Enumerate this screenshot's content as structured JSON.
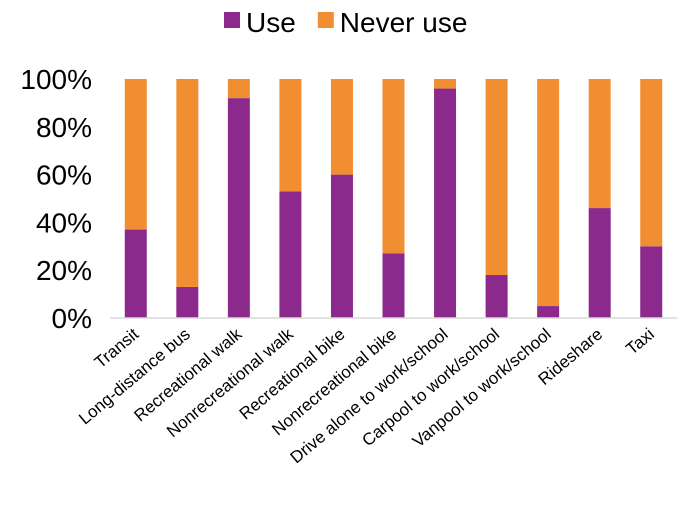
{
  "chart_data": {
    "type": "bar",
    "stacked": true,
    "normalized": true,
    "categories": [
      "Transit",
      "Long-distance bus",
      "Recreational walk",
      "Nonrecreational walk",
      "Recreational bike",
      "Nonrecreational bike",
      "Drive alone to work/school",
      "Carpool to work/school",
      "Vanpool to work/school",
      "Rideshare",
      "Taxi"
    ],
    "series": [
      {
        "name": "Use",
        "color": "#8b2a8c",
        "values": [
          37,
          13,
          92,
          53,
          60,
          27,
          96,
          18,
          5,
          46,
          30
        ]
      },
      {
        "name": "Never use",
        "color": "#f28e32",
        "values": [
          63,
          87,
          8,
          47,
          40,
          73,
          4,
          82,
          95,
          54,
          70
        ]
      }
    ],
    "y_ticks": [
      "0%",
      "20%",
      "40%",
      "60%",
      "80%",
      "100%"
    ],
    "ylim": [
      0,
      100
    ],
    "grid": false,
    "legend_position": "top-center"
  }
}
